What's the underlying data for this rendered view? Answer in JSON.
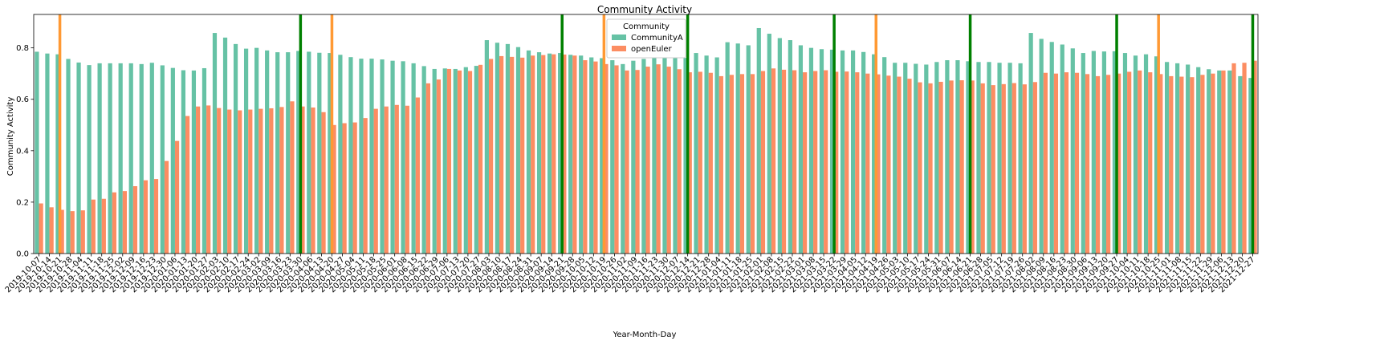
{
  "chart_data": {
    "type": "bar",
    "title": "Community Activity",
    "xlabel": "Year-Month-Day",
    "ylabel": "Community Activity",
    "ylim": [
      0,
      0.93
    ],
    "yticks": [
      0.0,
      0.2,
      0.4,
      0.6,
      0.8
    ],
    "ytick_labels": [
      "0.0",
      "0.2",
      "0.4",
      "0.6",
      "0.8"
    ],
    "grid": false,
    "legend": {
      "title": "Community",
      "placement": "upper-center"
    },
    "categories": [
      "2019-10-07",
      "2019-10-14",
      "2019-10-21",
      "2019-10-28",
      "2019-11-04",
      "2019-11-11",
      "2019-11-18",
      "2019-11-25",
      "2019-12-02",
      "2019-12-09",
      "2019-12-16",
      "2019-12-23",
      "2019-12-30",
      "2020-01-06",
      "2020-01-13",
      "2020-01-20",
      "2020-01-27",
      "2020-02-03",
      "2020-02-10",
      "2020-02-17",
      "2020-02-24",
      "2020-03-02",
      "2020-03-09",
      "2020-03-16",
      "2020-03-23",
      "2020-03-30",
      "2020-04-06",
      "2020-04-13",
      "2020-04-20",
      "2020-04-27",
      "2020-05-04",
      "2020-05-11",
      "2020-05-18",
      "2020-05-25",
      "2020-06-01",
      "2020-06-08",
      "2020-06-15",
      "2020-06-22",
      "2020-06-29",
      "2020-07-06",
      "2020-07-13",
      "2020-07-20",
      "2020-07-27",
      "2020-08-03",
      "2020-08-10",
      "2020-08-17",
      "2020-08-24",
      "2020-08-31",
      "2020-09-07",
      "2020-09-14",
      "2020-09-21",
      "2020-09-28",
      "2020-10-05",
      "2020-10-12",
      "2020-10-19",
      "2020-10-26",
      "2020-11-02",
      "2020-11-09",
      "2020-11-16",
      "2020-11-23",
      "2020-11-30",
      "2020-12-07",
      "2020-12-14",
      "2020-12-21",
      "2020-12-28",
      "2021-01-04",
      "2021-01-11",
      "2021-01-18",
      "2021-01-25",
      "2021-02-01",
      "2021-02-08",
      "2021-02-15",
      "2021-02-22",
      "2021-03-01",
      "2021-03-08",
      "2021-03-15",
      "2021-03-22",
      "2021-03-29",
      "2021-04-05",
      "2021-04-12",
      "2021-04-19",
      "2021-04-26",
      "2021-05-03",
      "2021-05-10",
      "2021-05-17",
      "2021-05-24",
      "2021-05-31",
      "2021-06-07",
      "2021-06-14",
      "2021-06-21",
      "2021-06-28",
      "2021-07-05",
      "2021-07-12",
      "2021-07-19",
      "2021-07-26",
      "2021-08-02",
      "2021-08-09",
      "2021-08-16",
      "2021-08-23",
      "2021-08-30",
      "2021-09-06",
      "2021-09-13",
      "2021-09-20",
      "2021-09-27",
      "2021-10-04",
      "2021-10-11",
      "2021-10-18",
      "2021-10-25",
      "2021-11-01",
      "2021-11-08",
      "2021-11-15",
      "2021-11-22",
      "2021-11-29",
      "2021-12-06",
      "2021-12-13",
      "2021-12-20",
      "2021-12-27"
    ],
    "series": [
      {
        "name": "CommunityA",
        "color": "#66c2a5",
        "values": [
          0.785,
          0.778,
          0.775,
          0.757,
          0.743,
          0.733,
          0.74,
          0.74,
          0.74,
          0.74,
          0.737,
          0.742,
          0.732,
          0.722,
          0.713,
          0.712,
          0.721,
          0.858,
          0.84,
          0.815,
          0.797,
          0.8,
          0.79,
          0.783,
          0.783,
          0.788,
          0.785,
          0.781,
          0.78,
          0.773,
          0.764,
          0.758,
          0.758,
          0.755,
          0.75,
          0.748,
          0.74,
          0.729,
          0.718,
          0.72,
          0.718,
          0.725,
          0.73,
          0.83,
          0.82,
          0.815,
          0.803,
          0.79,
          0.783,
          0.778,
          0.78,
          0.773,
          0.77,
          0.763,
          0.76,
          0.752,
          0.737,
          0.75,
          0.757,
          0.76,
          0.761,
          0.76,
          0.761,
          0.78,
          0.77,
          0.763,
          0.822,
          0.817,
          0.81,
          0.877,
          0.855,
          0.838,
          0.83,
          0.81,
          0.8,
          0.795,
          0.793,
          0.79,
          0.79,
          0.784,
          0.775,
          0.764,
          0.742,
          0.742,
          0.738,
          0.735,
          0.745,
          0.752,
          0.752,
          0.748,
          0.745,
          0.745,
          0.742,
          0.742,
          0.74,
          0.858,
          0.835,
          0.823,
          0.813,
          0.798,
          0.78,
          0.788,
          0.786,
          0.787,
          0.78,
          0.77,
          0.775,
          0.767,
          0.745,
          0.74,
          0.735,
          0.725,
          0.717,
          0.712,
          0.712,
          0.69,
          0.683
        ]
      },
      {
        "name": "openEuler",
        "color": "#fc8d62",
        "values": [
          0.195,
          0.18,
          0.17,
          0.165,
          0.168,
          0.21,
          0.213,
          0.238,
          0.243,
          0.262,
          0.285,
          0.29,
          0.36,
          0.438,
          0.535,
          0.572,
          0.576,
          0.566,
          0.56,
          0.557,
          0.56,
          0.563,
          0.565,
          0.57,
          0.592,
          0.572,
          0.568,
          0.55,
          0.5,
          0.507,
          0.51,
          0.527,
          0.563,
          0.572,
          0.578,
          0.575,
          0.607,
          0.662,
          0.677,
          0.718,
          0.712,
          0.71,
          0.734,
          0.757,
          0.768,
          0.765,
          0.762,
          0.77,
          0.772,
          0.775,
          0.774,
          0.77,
          0.752,
          0.747,
          0.737,
          0.732,
          0.712,
          0.714,
          0.727,
          0.736,
          0.727,
          0.717,
          0.705,
          0.707,
          0.703,
          0.69,
          0.695,
          0.698,
          0.698,
          0.71,
          0.72,
          0.715,
          0.713,
          0.705,
          0.71,
          0.713,
          0.707,
          0.708,
          0.705,
          0.7,
          0.697,
          0.692,
          0.688,
          0.68,
          0.666,
          0.662,
          0.668,
          0.673,
          0.674,
          0.673,
          0.662,
          0.655,
          0.659,
          0.663,
          0.658,
          0.667,
          0.703,
          0.7,
          0.705,
          0.703,
          0.698,
          0.69,
          0.695,
          0.7,
          0.707,
          0.712,
          0.705,
          0.698,
          0.69,
          0.688,
          0.686,
          0.695,
          0.7,
          0.712,
          0.74,
          0.742,
          0.75
        ]
      }
    ],
    "vlines": [
      {
        "index": 2,
        "color": "#ff9933"
      },
      {
        "index": 25,
        "color": "#008000"
      },
      {
        "index": 28,
        "color": "#ff9933"
      },
      {
        "index": 50,
        "color": "#008000"
      },
      {
        "index": 54,
        "color": "#ff9933"
      },
      {
        "index": 62,
        "color": "#008000"
      },
      {
        "index": 76,
        "color": "#008000"
      },
      {
        "index": 80,
        "color": "#ff9933"
      },
      {
        "index": 89,
        "color": "#008000"
      },
      {
        "index": 103,
        "color": "#008000"
      },
      {
        "index": 107,
        "color": "#ff9933"
      },
      {
        "index": 116,
        "color": "#008000"
      }
    ]
  }
}
